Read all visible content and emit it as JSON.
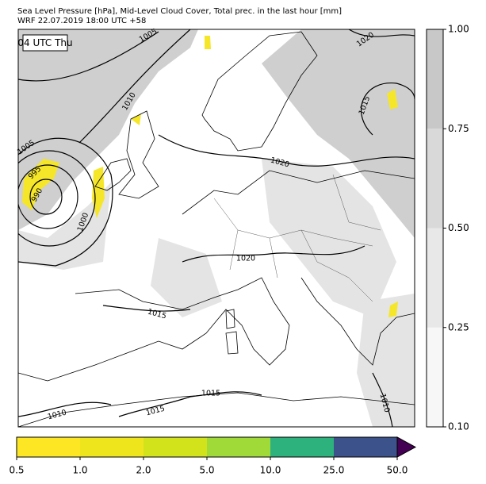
{
  "header": {
    "title": [
      "Sea Level Pressure [hPa], Mid-Level Cloud Cover, Total prec. in the last hour [mm]",
      "WRF 22.07.2019 18:00 UTC +58"
    ]
  },
  "map": {
    "time_label": "04 UTC Thu",
    "isobar_labels": [
      "1005",
      "1010",
      "1020",
      "1015",
      "1005",
      "995",
      "990",
      "1000",
      "1020",
      "1020",
      "1015",
      "1015",
      "1015",
      "1010",
      "1010"
    ]
  },
  "cloud_colorbar": {
    "ticks": [
      "0.10",
      "0.25",
      "0.50",
      "0.75",
      "1.00"
    ],
    "colors": [
      "#f7f7f7",
      "#e8e8e8",
      "#d9d9d9",
      "#c8c8c8"
    ]
  },
  "precip_colorbar": {
    "ticks": [
      "0.5",
      "1.0",
      "2.0",
      "5.0",
      "10.0",
      "25.0",
      "50.0"
    ],
    "colors": [
      "#fde725",
      "#efe51c",
      "#d2e21b",
      "#a0da39",
      "#2db27d",
      "#3b528b"
    ],
    "over_color": "#440154"
  }
}
